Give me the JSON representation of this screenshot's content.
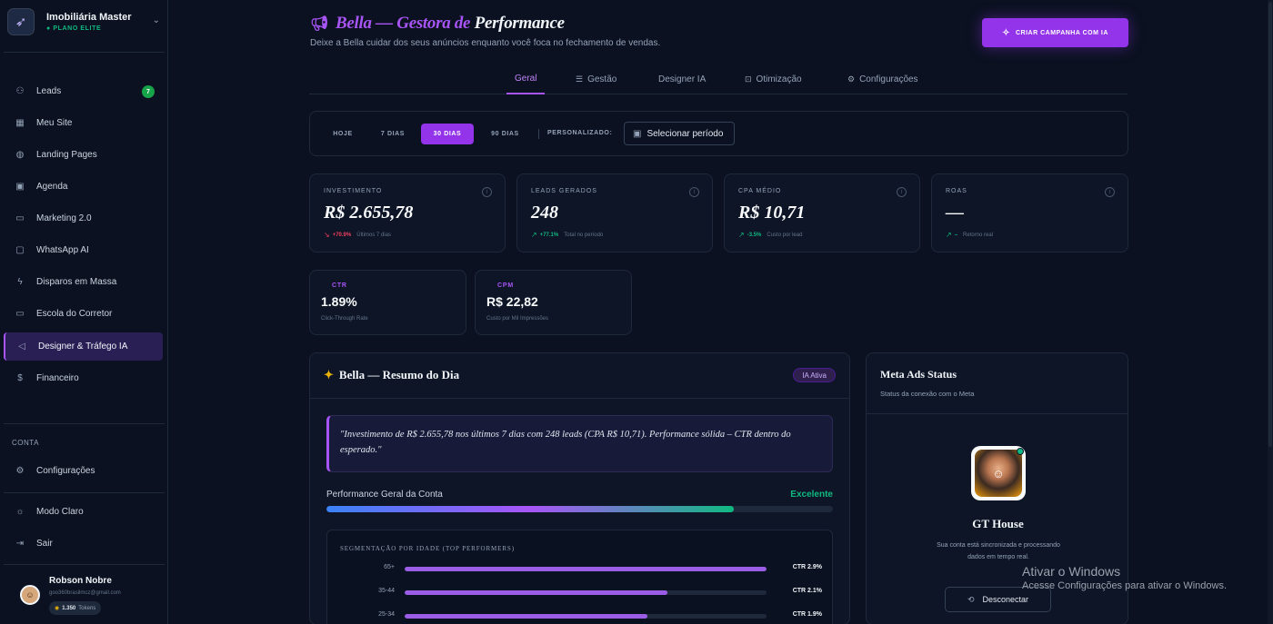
{
  "brand": {
    "name": "Imobiliária Master",
    "plan": "● PLANO ELITE"
  },
  "nav": [
    {
      "label": "Leads",
      "icon": "users-icon",
      "badge": "7"
    },
    {
      "label": "Meu Site",
      "icon": "layout-icon"
    },
    {
      "label": "Landing Pages",
      "icon": "globe-icon"
    },
    {
      "label": "Agenda",
      "icon": "calendar-icon"
    },
    {
      "label": "Marketing 2.0",
      "icon": "video-icon"
    },
    {
      "label": "WhatsApp AI",
      "icon": "chat-icon"
    },
    {
      "label": "Disparos em Massa",
      "icon": "bolt-icon"
    },
    {
      "label": "Escola do Corretor",
      "icon": "video-icon"
    },
    {
      "label": "Designer & Tráfego IA",
      "icon": "megaphone-icon",
      "active": true
    },
    {
      "label": "Financeiro",
      "icon": "dollar-icon"
    }
  ],
  "account": {
    "label": "CONTA",
    "settings": "Configurações",
    "theme": "Modo Claro",
    "logout": "Sair"
  },
  "user": {
    "name": "Robson Nobre",
    "email": "goo360brasilmcz@gmail.com",
    "tokens_value": "1.350",
    "tokens_label": "Tokens"
  },
  "header": {
    "title_part1": "Bella — Gestora de",
    "title_part2": "Performance",
    "subtitle": "Deixe a Bella cuidar dos seus anúncios enquanto você foca no fechamento de vendas.",
    "cta": "CRIAR CAMPANHA COM IA"
  },
  "tabs": [
    {
      "label": "Geral",
      "active": true
    },
    {
      "label": "Gestão",
      "icon": "sliders-icon"
    },
    {
      "label": "Designer IA"
    },
    {
      "label": "Otimização",
      "icon": "box-icon"
    },
    {
      "label": "Configurações",
      "icon": "gear-icon"
    }
  ],
  "periods": {
    "options": [
      "HOJE",
      "7 DIAS",
      "30 DIAS",
      "90 DIAS"
    ],
    "active": "30 DIAS",
    "custom_label": "PERSONALIZADO:",
    "select_placeholder": "Selecionar período"
  },
  "kpis": [
    {
      "label": "INVESTIMENTO",
      "value": "R$ 2.655,78",
      "delta": "+70.9%",
      "trend": "down",
      "note": "Últimos 7 dias"
    },
    {
      "label": "LEADS GERADOS",
      "value": "248",
      "delta": "+77.1%",
      "trend": "up",
      "note": "Total no período"
    },
    {
      "label": "CPA MÉDIO",
      "value": "R$ 10,71",
      "delta": "-3.5%",
      "trend": "up",
      "note": "Custo por lead"
    },
    {
      "label": "ROAS",
      "value": "—",
      "delta": "–",
      "trend": "up",
      "note": "Retorno real"
    }
  ],
  "kpis2": [
    {
      "label": "CTR",
      "value": "1.89%",
      "desc": "Click-Through Rate"
    },
    {
      "label": "CPM",
      "value": "R$ 22,82",
      "desc": "Custo por Mil Impressões"
    }
  ],
  "summary": {
    "title": "Bella — Resumo do Dia",
    "badge": "IA Ativa",
    "quote": "\"Investimento de R$ 2.655,78 nos últimos 7 dias com 248 leads (CPA R$ 10,71). Performance sólida – CTR dentro do esperado.\"",
    "performance_label": "Performance Geral da Conta",
    "performance_status": "Excelente",
    "performance_level": 0.805,
    "segment_title": "SEGMENTAÇÃO POR IDADE (TOP PERFORMERS)",
    "segments": [
      {
        "age": "65+",
        "ctr": "CTR 2.9%",
        "level": 1.0
      },
      {
        "age": "35-44",
        "ctr": "CTR 2.1%",
        "level": 0.725
      },
      {
        "age": "25-34",
        "ctr": "CTR 1.9%",
        "level": 0.67
      }
    ]
  },
  "meta": {
    "title": "Meta Ads Status",
    "subtitle": "Status da conexão com o Meta",
    "account_name": "GT House",
    "desc": "Sua conta está sincronizada e processando dados em tempo real.",
    "button": "Desconectar"
  },
  "watermark": {
    "line1": "Ativar o Windows",
    "line2": "Acesse Configurações para ativar o Windows."
  },
  "colors": {
    "accent": "#9333ea",
    "accent_light": "#a855f7",
    "success": "#10b981",
    "danger": "#f43f5e",
    "bg": "#0b1120"
  }
}
